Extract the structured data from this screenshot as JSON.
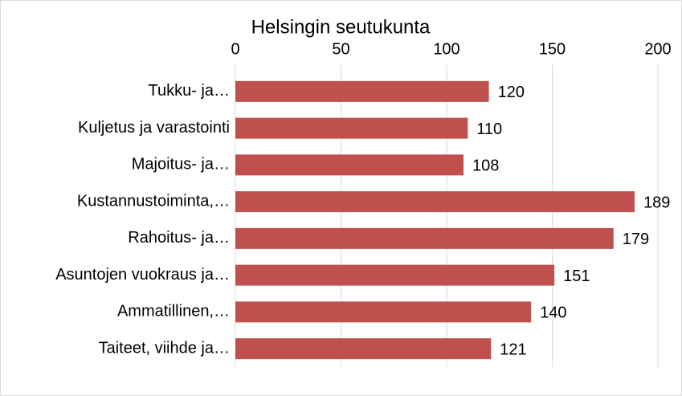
{
  "chart_data": {
    "type": "bar",
    "orientation": "horizontal",
    "title": "Helsingin seutukunta",
    "categories": [
      "Tukku- ja…",
      "Kuljetus ja varastointi",
      "Majoitus- ja…",
      "Kustannustoiminta,…",
      "Rahoitus- ja…",
      "Asuntojen vuokraus ja…",
      "Ammatillinen,…",
      "Taiteet, viihde ja…"
    ],
    "values": [
      120,
      110,
      108,
      189,
      179,
      151,
      140,
      121
    ],
    "color": "#c0504d",
    "xlim": [
      0,
      200
    ],
    "xticks": [
      0,
      50,
      100,
      150,
      200
    ],
    "grid": true
  }
}
